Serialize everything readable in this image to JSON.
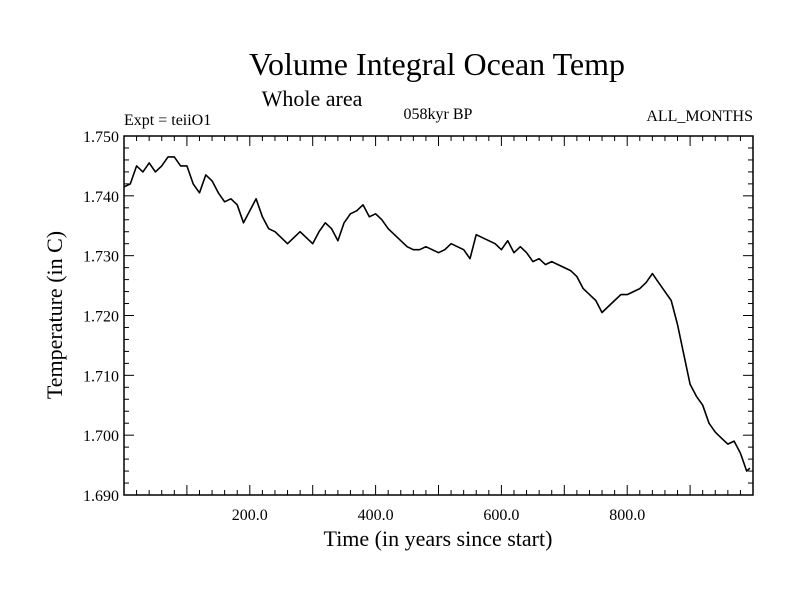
{
  "title": "Volume Integral Ocean Temp",
  "subtitle": "Whole area",
  "expt_label": "Expt = teiiO1",
  "period_label": "058kyr BP",
  "months_label": "ALL_MONTHS",
  "chart_data": {
    "type": "line",
    "xlabel": "Time (in years since start)",
    "ylabel": "Temperature (in C)",
    "xlim": [
      0,
      1000
    ],
    "ylim": [
      1.69,
      1.75
    ],
    "x_ticks": [
      200,
      400,
      600,
      800
    ],
    "x_tick_labels": [
      "200.0",
      "400.0",
      "600.0",
      "800.0"
    ],
    "y_ticks": [
      1.69,
      1.7,
      1.71,
      1.72,
      1.73,
      1.74,
      1.75
    ],
    "y_tick_labels": [
      "1.690",
      "1.700",
      "1.710",
      "1.720",
      "1.730",
      "1.740",
      "1.750"
    ],
    "grid": false,
    "series": [
      {
        "x": [
          0,
          10,
          20,
          30,
          40,
          50,
          60,
          70,
          80,
          90,
          100,
          110,
          120,
          130,
          140,
          150,
          160,
          170,
          180,
          190,
          200,
          210,
          220,
          230,
          240,
          250,
          260,
          270,
          280,
          290,
          300,
          310,
          320,
          330,
          340,
          350,
          360,
          370,
          380,
          390,
          400,
          410,
          420,
          430,
          440,
          450,
          460,
          470,
          480,
          490,
          500,
          510,
          520,
          530,
          540,
          550,
          560,
          570,
          580,
          590,
          600,
          610,
          620,
          630,
          640,
          650,
          660,
          670,
          680,
          690,
          700,
          710,
          720,
          730,
          740,
          750,
          760,
          770,
          780,
          790,
          800,
          810,
          820,
          830,
          840,
          850,
          860,
          870,
          880,
          890,
          900,
          910,
          920,
          930,
          940,
          950,
          960,
          970,
          980,
          990,
          995
        ],
        "values": [
          1.7415,
          1.742,
          1.745,
          1.744,
          1.7455,
          1.744,
          1.745,
          1.7465,
          1.7465,
          1.745,
          1.745,
          1.742,
          1.7405,
          1.7435,
          1.7425,
          1.7405,
          1.739,
          1.7395,
          1.7385,
          1.7355,
          1.7375,
          1.7395,
          1.7365,
          1.7345,
          1.734,
          1.733,
          1.732,
          1.733,
          1.734,
          1.733,
          1.732,
          1.734,
          1.7355,
          1.7345,
          1.7325,
          1.7355,
          1.737,
          1.7375,
          1.7385,
          1.7365,
          1.737,
          1.736,
          1.7345,
          1.7335,
          1.7325,
          1.7315,
          1.731,
          1.731,
          1.7315,
          1.731,
          1.7305,
          1.731,
          1.732,
          1.7315,
          1.731,
          1.7295,
          1.7335,
          1.733,
          1.7325,
          1.732,
          1.731,
          1.7325,
          1.7305,
          1.7315,
          1.7305,
          1.729,
          1.7295,
          1.7285,
          1.729,
          1.7285,
          1.728,
          1.7275,
          1.7265,
          1.7245,
          1.7235,
          1.7225,
          1.7205,
          1.7215,
          1.7225,
          1.7235,
          1.7235,
          1.724,
          1.7245,
          1.7255,
          1.727,
          1.7255,
          1.724,
          1.7225,
          1.7185,
          1.7135,
          1.7085,
          1.7065,
          1.705,
          1.702,
          1.7005,
          1.6995,
          1.6985,
          1.699,
          1.697,
          1.694,
          1.6945
        ]
      }
    ]
  }
}
